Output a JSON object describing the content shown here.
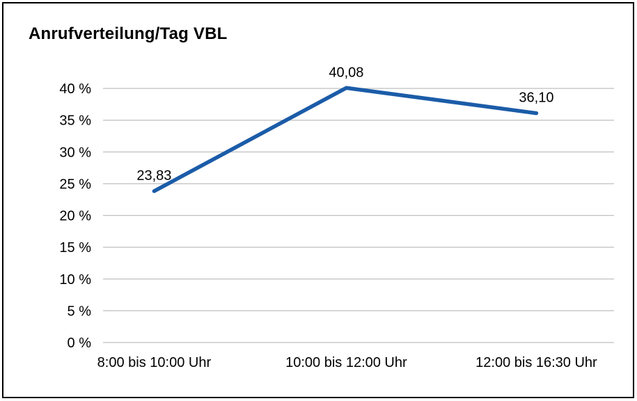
{
  "chart": {
    "title": "Anrufverteilung/Tag VBL"
  },
  "chart_data": {
    "type": "line",
    "title": "Anrufverteilung/Tag VBL",
    "categories": [
      "8:00 bis 10:00 Uhr",
      "10:00 bis 12:00 Uhr",
      "12:00 bis 16:30 Uhr"
    ],
    "values": [
      23.83,
      40.08,
      36.1
    ],
    "value_labels": [
      "23,83",
      "40,08",
      "36,10"
    ],
    "series_name": "Anrufverteilung",
    "xlabel": "",
    "ylabel": "",
    "ylim": [
      0,
      40
    ],
    "ytick_step": 5,
    "ytick_labels": [
      "0 %",
      "5 %",
      "10 %",
      "15 %",
      "20 %",
      "25 %",
      "30 %",
      "35 %",
      "40 %"
    ],
    "grid": true,
    "legend": "none",
    "colors": {
      "series": "#1B5CA8",
      "gridline": "#BFBFBF",
      "text": "#000000",
      "frame_border": "#000000",
      "background": "#FFFFFF"
    }
  }
}
